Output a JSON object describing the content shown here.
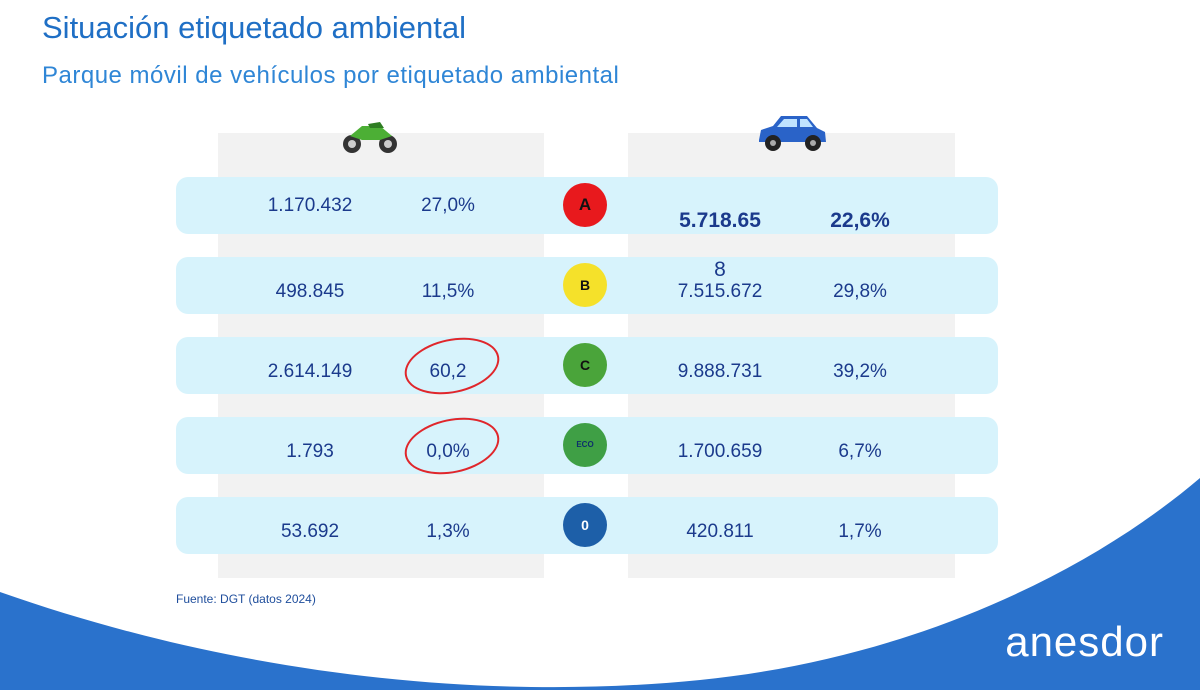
{
  "title": "Situación etiquetado ambiental",
  "subtitle": "Parque móvil de vehículos por etiquetado ambiental",
  "columns": {
    "left_icon": "motorcycle-icon",
    "right_icon": "car-icon"
  },
  "rows": [
    {
      "label": "A",
      "moto_count": "1.170.432",
      "moto_pct": "27,0%",
      "car_count": "5.718.65",
      "car_pct": "22,6%",
      "color": "#e8191d"
    },
    {
      "label": "B",
      "moto_count": "498.845",
      "moto_pct": "11,5%",
      "car_count_overflow": "8",
      "car_count": "7.515.672",
      "car_pct": "29,8%",
      "color": "#f5e12a"
    },
    {
      "label": "C",
      "moto_count": "2.614.149",
      "moto_pct": "60,2",
      "car_count": "9.888.731",
      "car_pct": "39,2%",
      "color": "#4aa43a"
    },
    {
      "label": "ECO",
      "moto_count": "1.793",
      "moto_pct": "0,0%",
      "car_count": "1.700.659",
      "car_pct": "6,7%",
      "color": "#3f9f45"
    },
    {
      "label": "0",
      "moto_count": "53.692",
      "moto_pct": "1,3%",
      "car_count": "420.811",
      "car_pct": "1,7%",
      "color": "#1d5fa8"
    }
  ],
  "source": "Fuente: DGT (datos 2024)",
  "logo": "anesdor",
  "colors": {
    "accent": "#2a72cc",
    "row_bg": "#d7f3fc",
    "highlight": "#e0262b"
  }
}
